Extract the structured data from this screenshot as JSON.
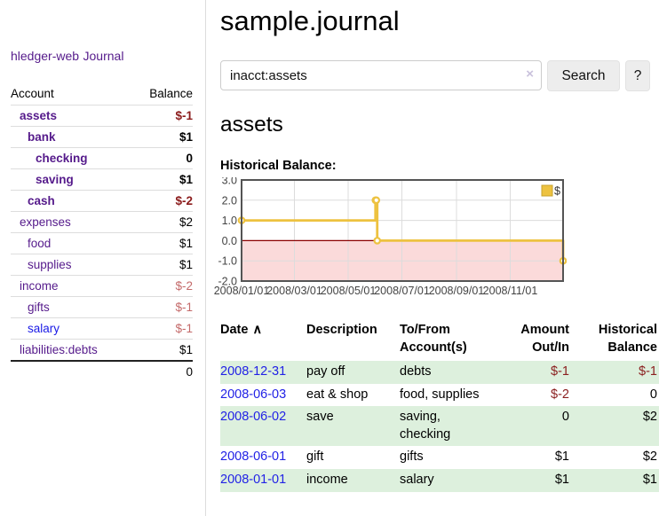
{
  "sidebar": {
    "app_link": "hledger-web",
    "journal_link": "Journal",
    "accounts": {
      "headers": {
        "account": "Account",
        "balance": "Balance"
      },
      "rows": [
        {
          "name": "assets",
          "balance": "$-1"
        },
        {
          "name": "bank",
          "balance": "$1"
        },
        {
          "name": "checking",
          "balance": "0"
        },
        {
          "name": "saving",
          "balance": "$1"
        },
        {
          "name": "cash",
          "balance": "$-2"
        },
        {
          "name": "expenses",
          "balance": "$2"
        },
        {
          "name": "food",
          "balance": "$1"
        },
        {
          "name": "supplies",
          "balance": "$1"
        },
        {
          "name": "income",
          "balance": "$-2"
        },
        {
          "name": "gifts",
          "balance": "$-1"
        },
        {
          "name": "salary",
          "balance": "$-1"
        },
        {
          "name": "liabilities:debts",
          "balance": "$1"
        }
      ],
      "total": "0"
    }
  },
  "main": {
    "title": "sample.journal",
    "search": {
      "value": "inacct:assets",
      "clear_icon": "×",
      "search_button": "Search",
      "help_button": "?"
    },
    "account_heading": "assets"
  },
  "chart_data": {
    "type": "line",
    "step": true,
    "title": "Historical Balance:",
    "series": [
      {
        "name": "$",
        "color": "#edc240",
        "points": [
          {
            "x": "2008-01-01",
            "y": 1
          },
          {
            "x": "2008-06-01",
            "y": 2
          },
          {
            "x": "2008-06-02",
            "y": 2
          },
          {
            "x": "2008-06-03",
            "y": 0
          },
          {
            "x": "2008-12-31",
            "y": -1
          }
        ]
      }
    ],
    "xlim": [
      "2008-01-01",
      "2008-12-31"
    ],
    "ylim": [
      -2,
      3
    ],
    "y_ticks": [
      3,
      2,
      1,
      0,
      -1,
      -2
    ],
    "y_tick_labels": [
      "3.0",
      "2.0",
      "1.0",
      "0.0",
      "-1.0",
      "-2.0"
    ],
    "x_ticks": [
      "2008-01-01",
      "2008-03-01",
      "2008-05-01",
      "2008-07-01",
      "2008-09-01",
      "2008-11-01"
    ],
    "x_tick_labels": [
      "2008/01/01",
      "2008/03/01",
      "2008/05/01",
      "2008/07/01",
      "2008/09/01",
      "2008/11/01"
    ],
    "legend": {
      "label": "$",
      "position": "top-right"
    },
    "grid": true,
    "negative_region_color": "#fbdada",
    "zero_line_color": "#8b0000",
    "border_color": "#545454"
  },
  "register": {
    "headers": {
      "date": "Date",
      "sort_indicator": "∧",
      "description": "Description",
      "account": "To/From Account(s)",
      "amount": "Amount Out/In",
      "balance": "Historical Balance"
    },
    "rows": [
      {
        "date": "2008-12-31",
        "description": "pay off",
        "accounts": "debts",
        "amount": "$-1",
        "balance": "$-1"
      },
      {
        "date": "2008-06-03",
        "description": "eat & shop",
        "accounts": "food, supplies",
        "amount": "$-2",
        "balance": "0"
      },
      {
        "date": "2008-06-02",
        "description": "save",
        "accounts": "saving, checking",
        "amount": "0",
        "balance": "$2"
      },
      {
        "date": "2008-06-01",
        "description": "gift",
        "accounts": "gifts",
        "amount": "$1",
        "balance": "$2"
      },
      {
        "date": "2008-01-01",
        "description": "income",
        "accounts": "salary",
        "amount": "$1",
        "balance": "$1"
      }
    ]
  },
  "colors": {
    "link_purple": "#551a8b",
    "link_blue": "#1a1ae6",
    "date_link_blue": "#2222e6",
    "negative_strong": "#8b1b1b",
    "negative_soft": "#c46a6a",
    "row_stripe_green": "#ddf0dd",
    "chart_line_gold": "#edc240",
    "chart_negative_pink": "#fbdada",
    "chart_zero_line": "#8b0000",
    "chart_border": "#545454",
    "button_gray": "#ededed"
  }
}
